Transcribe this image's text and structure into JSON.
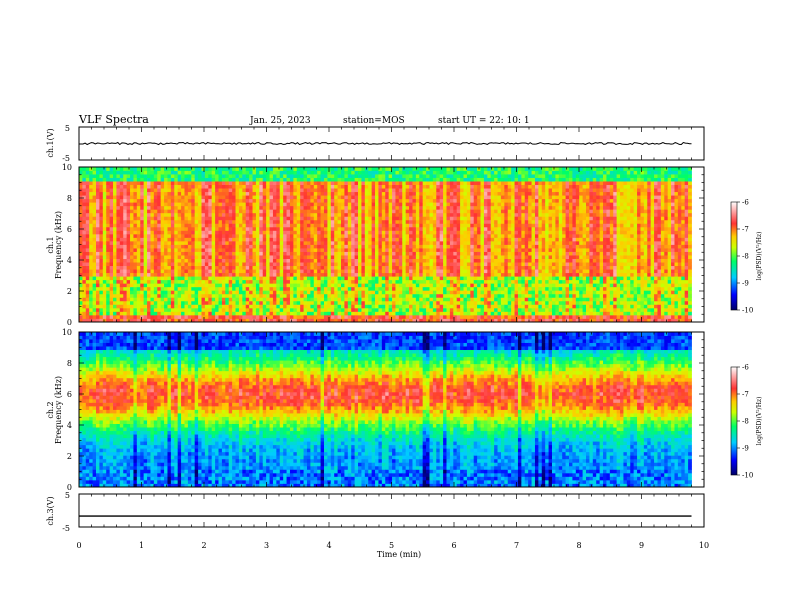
{
  "header": {
    "title": "VLF Spectra",
    "date": "Jan. 25, 2023",
    "station": "station=MOS",
    "start": "start UT =  22: 10: 1"
  },
  "colors": {
    "background": "#ffffff",
    "axes": "#000000",
    "colormap": [
      "#000066",
      "#0000ff",
      "#00ccff",
      "#00ff66",
      "#ccff00",
      "#ffcc00",
      "#ff3333",
      "#ffffff"
    ]
  },
  "chart_data": [
    {
      "type": "line",
      "panel": "ch1",
      "ylabel": "ch.1(V)",
      "ylim": [
        -5,
        5
      ],
      "yticks": [
        "5",
        "-5"
      ],
      "xlim": [
        0,
        10
      ],
      "series": [
        {
          "x": [
            0,
            9.8
          ],
          "y": [
            0,
            0
          ]
        }
      ]
    },
    {
      "type": "heatmap",
      "panel": "ch1-spectrogram",
      "ylabel": "ch.1\nFrequency (kHz)",
      "ylim": [
        0,
        10
      ],
      "yticks": [
        "0",
        "2",
        "4",
        "6",
        "8",
        "10"
      ],
      "xlim": [
        0,
        10
      ],
      "data_x_range": [
        0,
        9.8
      ],
      "colorbar": {
        "label": "log(PSD)(V²/Hz)",
        "range": [
          -10,
          -6
        ],
        "ticks": [
          "-6",
          "-7",
          "-8",
          "-9",
          "-10"
        ]
      }
    },
    {
      "type": "heatmap",
      "panel": "ch2-spectrogram",
      "ylabel": "ch.2\nFrequency (kHz)",
      "ylim": [
        0,
        10
      ],
      "yticks": [
        "0",
        "2",
        "4",
        "6",
        "8",
        "10"
      ],
      "xlim": [
        0,
        10
      ],
      "data_x_range": [
        0,
        9.8
      ],
      "colorbar": {
        "label": "log(PSD)(V²/Hz)",
        "range": [
          -10,
          -6
        ],
        "ticks": [
          "-6",
          "-7",
          "-8",
          "-9",
          "-10"
        ]
      }
    },
    {
      "type": "line",
      "panel": "ch3",
      "ylabel": "ch.3(V)",
      "ylim": [
        -5,
        5
      ],
      "yticks": [
        "5",
        "-5"
      ],
      "xlim": [
        0,
        10
      ],
      "xlabel": "Time (min)",
      "xticks": [
        "0",
        "1",
        "2",
        "3",
        "4",
        "5",
        "6",
        "7",
        "8",
        "9",
        "10"
      ],
      "series": [
        {
          "x": [
            0,
            9.8
          ],
          "y": [
            -1.7,
            -1.7
          ]
        }
      ]
    }
  ]
}
